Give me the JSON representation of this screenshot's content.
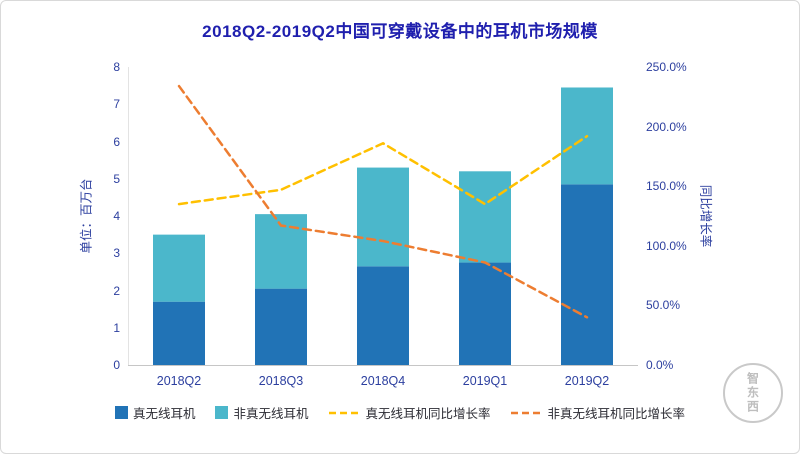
{
  "title": "2018Q2-2019Q2中国可穿戴设备中的耳机市场规模",
  "watermark": "智东西",
  "colors": {
    "title": "#1f1fae",
    "axis_text": "#2C3F9F",
    "bar_true_wireless": "#2173B6",
    "bar_non_true_wireless": "#4BB7CB",
    "line_true_wireless": "#FFC000",
    "line_non_true_wireless": "#ED7D31"
  },
  "legend": {
    "items": [
      {
        "label": "真无线耳机",
        "marker": "square",
        "color": "#2173B6"
      },
      {
        "label": "非真无线耳机",
        "marker": "square",
        "color": "#4BB7CB"
      },
      {
        "label": "真无线耳机同比增长率",
        "marker": "dashed-line",
        "color": "#FFC000"
      },
      {
        "label": "非真无线耳机同比增长率",
        "marker": "dashed-line",
        "color": "#ED7D31"
      }
    ]
  },
  "chart_data": {
    "type": "bar",
    "subtype": "stacked-bar-with-lines",
    "title": "2018Q2-2019Q2中国可穿戴设备中的耳机市场规模",
    "categories": [
      "2018Q2",
      "2018Q3",
      "2018Q4",
      "2019Q1",
      "2019Q2"
    ],
    "bar_series": [
      {
        "name": "真无线耳机",
        "color": "#2173B6",
        "values": [
          1.7,
          2.05,
          2.65,
          2.75,
          4.85
        ]
      },
      {
        "name": "非真无线耳机",
        "color": "#4BB7CB",
        "values": [
          1.8,
          2.0,
          2.65,
          2.45,
          2.6
        ]
      }
    ],
    "bar_totals": [
      3.5,
      4.05,
      5.3,
      5.2,
      7.45
    ],
    "line_series": [
      {
        "name": "真无线耳机同比增长率",
        "color": "#FFC000",
        "dash": "8 5",
        "values": [
          135,
          147,
          186,
          135,
          192
        ]
      },
      {
        "name": "非真无线耳机同比增长率",
        "color": "#ED7D31",
        "dash": "8 5",
        "values": [
          234,
          117,
          104,
          86,
          40
        ]
      }
    ],
    "left_axis": {
      "label": "单位：百万台",
      "min": 0,
      "max": 8,
      "ticks": [
        0,
        1,
        2,
        3,
        4,
        5,
        6,
        7,
        8
      ]
    },
    "right_axis": {
      "label": "同比增长率",
      "min": 0,
      "max": 250,
      "ticks": [
        "0.0%",
        "50.0%",
        "100.0%",
        "150.0%",
        "200.0%",
        "250.0%"
      ]
    },
    "grid": false,
    "legend_position": "bottom"
  }
}
